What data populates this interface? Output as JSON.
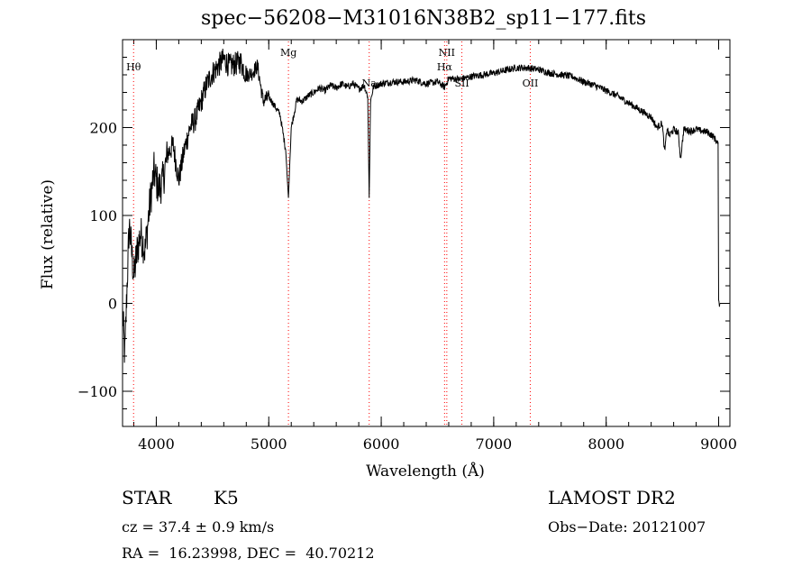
{
  "header": {
    "title": "spec−56208−M31016N38B2_sp11−177.fits"
  },
  "info": {
    "object_class": "STAR",
    "subclass": "K5",
    "survey": "LAMOST DR2",
    "cz": "cz = 37.4 ± 0.9 km/s",
    "obs_date": "Obs−Date: 20121007",
    "radec": "RA =  16.23998, DEC =  40.70212"
  },
  "chart_data": {
    "type": "line",
    "title": "spec−56208−M31016N38B2_sp11−177.fits",
    "xlabel": "Wavelength (Å)",
    "ylabel": "Flux (relative)",
    "xlim": [
      3700,
      9100
    ],
    "ylim": [
      -140,
      300
    ],
    "x_ticks": [
      4000,
      5000,
      6000,
      7000,
      8000,
      9000
    ],
    "x_tick_labels": [
      "4000",
      "5000",
      "6000",
      "7000",
      "8000",
      "9000"
    ],
    "y_ticks": [
      -100,
      0,
      100,
      200
    ],
    "y_tick_labels": [
      "−100",
      "0",
      "100",
      "200"
    ],
    "x_minor_step": 200,
    "y_minor_step": 20,
    "grid": false,
    "line_color": "#000000",
    "line_marker_color": "#ff0000",
    "spectrum": {
      "x": [
        3700,
        3720,
        3740,
        3760,
        3780,
        3800,
        3830,
        3860,
        3900,
        3940,
        3980,
        4020,
        4060,
        4100,
        4150,
        4200,
        4250,
        4300,
        4350,
        4400,
        4450,
        4500,
        4550,
        4600,
        4650,
        4700,
        4750,
        4800,
        4850,
        4900,
        4950,
        5000,
        5050,
        5100,
        5150,
        5175,
        5190,
        5200,
        5250,
        5300,
        5350,
        5400,
        5450,
        5500,
        5550,
        5600,
        5650,
        5700,
        5750,
        5800,
        5850,
        5880,
        5893,
        5905,
        5930,
        5960,
        6000,
        6100,
        6200,
        6300,
        6400,
        6500,
        6563,
        6600,
        6700,
        6800,
        6900,
        7000,
        7100,
        7200,
        7300,
        7400,
        7500,
        7600,
        7700,
        7800,
        7900,
        8000,
        8100,
        8200,
        8300,
        8400,
        8450,
        8498,
        8520,
        8542,
        8560,
        8600,
        8640,
        8662,
        8690,
        8750,
        8800,
        8850,
        8900,
        8950,
        8980,
        8995,
        9000,
        9010
      ],
      "y": [
        -10,
        -60,
        20,
        90,
        60,
        30,
        60,
        80,
        60,
        110,
        150,
        130,
        140,
        170,
        180,
        140,
        175,
        200,
        210,
        230,
        250,
        262,
        270,
        278,
        270,
        272,
        275,
        260,
        262,
        270,
        230,
        235,
        225,
        215,
        175,
        120,
        170,
        200,
        232,
        230,
        236,
        240,
        245,
        242,
        248,
        245,
        250,
        246,
        250,
        244,
        248,
        235,
        120,
        230,
        246,
        248,
        250,
        252,
        252,
        254,
        250,
        252,
        246,
        256,
        255,
        258,
        260,
        262,
        265,
        268,
        268,
        266,
        262,
        260,
        258,
        252,
        248,
        242,
        236,
        228,
        220,
        212,
        200,
        205,
        172,
        200,
        190,
        198,
        194,
        165,
        198,
        196,
        198,
        196,
        195,
        190,
        185,
        180,
        0,
        0
      ]
    },
    "lines": [
      {
        "label": "Hθ",
        "wavelength": 3798
      },
      {
        "label": "Mg",
        "wavelength": 5175
      },
      {
        "label": "Na",
        "wavelength": 5893
      },
      {
        "label": "NII",
        "wavelength": 6583
      },
      {
        "label": "Hα",
        "wavelength": 6563
      },
      {
        "label": "SII",
        "wavelength": 6717
      },
      {
        "label": "OII",
        "wavelength": 7325
      }
    ]
  }
}
